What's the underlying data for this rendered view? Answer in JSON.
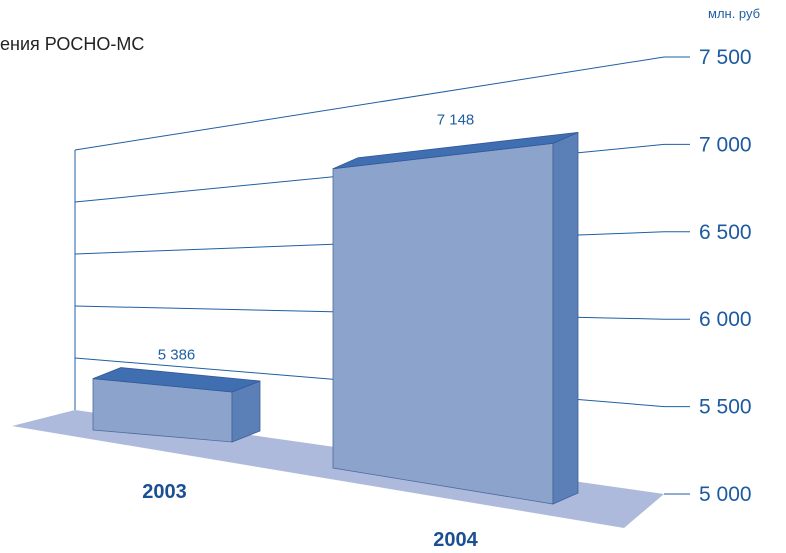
{
  "title": "ения РОСНО-МС",
  "unit": "млн. руб",
  "colors": {
    "axis_line": "#1f5fa3",
    "bar_front": "#8ca4cc",
    "bar_top": "#3f6fb0",
    "bar_side": "#5b80b8",
    "floor": "#aebadb",
    "category_text": "#1b4f93",
    "value_text": "#1f5fa3"
  },
  "chart_data": {
    "type": "bar",
    "title": "ения РОСНО-МС",
    "ylabel": "млн. руб",
    "ylim": [
      5000,
      7500
    ],
    "yticks": [
      5000,
      5500,
      6000,
      6500,
      7000,
      7500
    ],
    "ytick_labels": [
      "5 000",
      "5 500",
      "6 000",
      "6 500",
      "7 000",
      "7 500"
    ],
    "categories": [
      "2003",
      "2004"
    ],
    "values": [
      5386,
      7148
    ],
    "value_labels": [
      "5 386",
      "7 148"
    ],
    "grid": true,
    "style": "3d"
  }
}
